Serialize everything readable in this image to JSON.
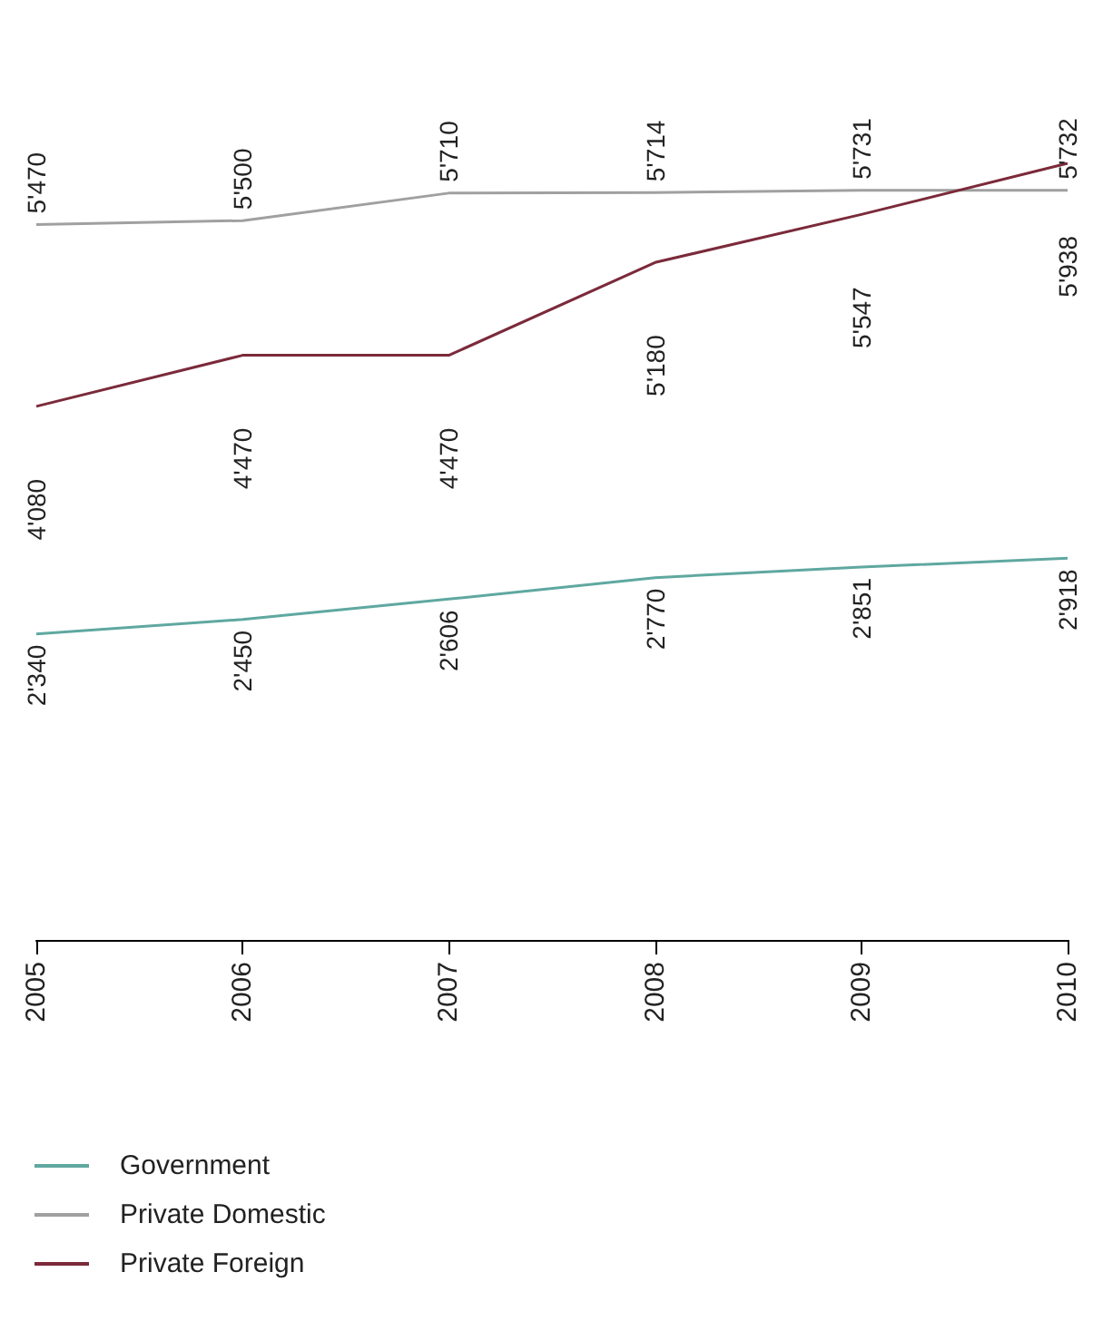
{
  "chart_data": {
    "type": "line",
    "categories": [
      "2005",
      "2006",
      "2007",
      "2008",
      "2009",
      "2010"
    ],
    "series": [
      {
        "name": "Government",
        "color": "#5fa8a0",
        "values": [
          2340,
          2450,
          2606,
          2770,
          2851,
          2918
        ],
        "value_labels": [
          "2'340",
          "2'450",
          "2'606",
          "2'770",
          "2'851",
          "2'918"
        ]
      },
      {
        "name": "Private Domestic",
        "color": "#a0a0a0",
        "values": [
          5470,
          5500,
          5710,
          5714,
          5731,
          5732
        ],
        "value_labels": [
          "5'470",
          "5'500",
          "5'710",
          "5'714",
          "5'731",
          "5'732"
        ]
      },
      {
        "name": "Private Foreign",
        "color": "#7b2a3a",
        "values": [
          4080,
          4470,
          4470,
          5180,
          5547,
          5938
        ],
        "value_labels": [
          "4'080",
          "4'470",
          "4'470",
          "5'180",
          "5'547",
          "5'938"
        ]
      }
    ],
    "legend": "bottom left",
    "marker": "none",
    "line_style": "solid",
    "grid": false
  }
}
